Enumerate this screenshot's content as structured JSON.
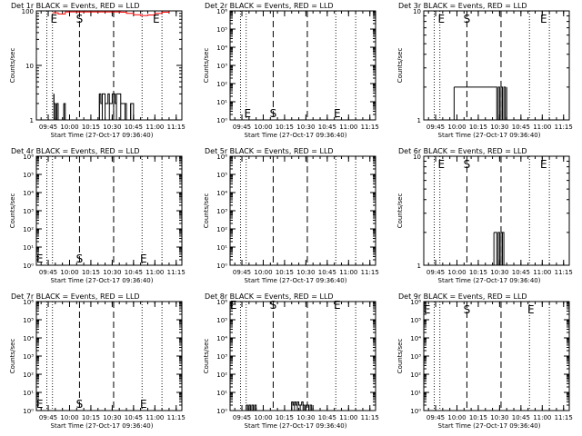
{
  "colors": {
    "events": "#000000",
    "lld": "#ff0000",
    "background": "#ffffff"
  },
  "marker_labels": {
    "e": "E",
    "s": "S"
  },
  "chart_data": [
    {
      "type": "line",
      "title": "Det 1r BLACK = Events, RED = LLD",
      "xlabel": "Start Time (27-Oct-17 09:36:40)",
      "ylabel": "Counts/sec",
      "scale": "log",
      "ylim": [
        1,
        100
      ],
      "yticks": [
        "1",
        "10",
        "100"
      ],
      "xticks": [
        "09:45",
        "10:00",
        "10:15",
        "10:30",
        "10:45",
        "11:00",
        "11:15"
      ],
      "grid": false,
      "markers": {
        "E1": "09:49",
        "S": "10:07",
        "E2": "11:01"
      },
      "series": [
        {
          "name": "Events",
          "color": "#000000",
          "x": [
            "09:49",
            "09:49",
            "09:50",
            "09:50",
            "09:51",
            "09:52",
            "09:56",
            "09:57",
            "10:21",
            "10:22",
            "10:23",
            "10:24",
            "10:25",
            "10:27",
            "10:28",
            "10:30",
            "10:31",
            "10:32",
            "10:33",
            "10:35",
            "10:36",
            "10:38",
            "10:39",
            "10:40",
            "10:43",
            "10:45"
          ],
          "y": [
            3,
            2,
            2,
            1,
            2,
            1,
            2,
            1,
            3,
            2,
            3,
            3,
            2,
            3,
            2,
            3,
            3,
            2,
            3,
            3,
            2,
            2,
            2,
            1,
            2,
            1
          ]
        },
        {
          "name": "LLD",
          "color": "#ff0000",
          "x": [
            "09:48",
            "09:52",
            "09:57",
            "10:36",
            "10:40",
            "10:45",
            "10:50",
            "10:55",
            "11:00",
            "11:05",
            "11:10"
          ],
          "y": [
            92,
            88,
            96,
            95,
            90,
            85,
            82,
            84,
            90,
            95,
            98
          ]
        }
      ]
    },
    {
      "type": "line",
      "title": "Det 2r BLACK = Events, RED = LLD",
      "xlabel": "Start Time (27-Oct-17 09:36:40)",
      "ylabel": "Counts/sec",
      "scale": "log",
      "ylim": [
        1,
        1000000
      ],
      "yticks": [
        "10⁰",
        "10¹",
        "10²",
        "10³",
        "10⁴",
        "10⁵",
        "10⁶"
      ],
      "xticks": [
        "09:45",
        "10:00",
        "10:15",
        "10:30",
        "10:45",
        "11:00",
        "11:15"
      ],
      "grid": false,
      "markers": {
        "E1": "09:49",
        "S": "10:07",
        "E2": "10:52"
      },
      "series": []
    },
    {
      "type": "line",
      "title": "Det 3r BLACK = Events, RED = LLD",
      "xlabel": "Start Time (27-Oct-17 09:36:40)",
      "ylabel": "Counts/sec",
      "scale": "log",
      "ylim": [
        1,
        10
      ],
      "yticks": [
        "1",
        "10"
      ],
      "xticks": [
        "09:45",
        "10:00",
        "10:15",
        "10:30",
        "10:45",
        "11:00",
        "11:15"
      ],
      "grid": false,
      "markers": {
        "E1": "09:49",
        "S": "10:07",
        "E2": "11:01"
      },
      "series": [
        {
          "name": "Events",
          "color": "#000000",
          "x": [
            "09:58",
            "10:27",
            "10:28",
            "10:29",
            "10:30",
            "10:31",
            "10:32",
            "10:33",
            "10:34",
            "10:35"
          ],
          "y": [
            2,
            2,
            1,
            2,
            1,
            2,
            1,
            2,
            1,
            2
          ]
        }
      ]
    },
    {
      "type": "line",
      "title": "Det 4r BLACK = Events, RED = LLD",
      "xlabel": "Start Time (27-Oct-17 09:36:40)",
      "ylabel": "Counts/sec",
      "scale": "log",
      "ylim": [
        1,
        1000000
      ],
      "yticks": [
        "10⁰",
        "10¹",
        "10²",
        "10³",
        "10⁴",
        "10⁵",
        "10⁶"
      ],
      "xticks": [
        "09:45",
        "10:00",
        "10:15",
        "10:30",
        "10:45",
        "11:00",
        "11:15"
      ],
      "grid": false,
      "markers": {
        "E1": "09:39",
        "S": "10:07",
        "E2": "10:52"
      },
      "series": []
    },
    {
      "type": "line",
      "title": "Det 5r BLACK = Events, RED = LLD",
      "xlabel": "Start Time (27-Oct-17 09:36:40)",
      "ylabel": "Counts/sec",
      "scale": "log",
      "ylim": [
        1,
        1000000
      ],
      "yticks": [
        "10⁰",
        "10¹",
        "10²",
        "10³",
        "10⁴",
        "10⁵",
        "10⁶"
      ],
      "xticks": [
        "09:45",
        "10:00",
        "10:15",
        "10:30",
        "10:45",
        "11:00",
        "11:15"
      ],
      "grid": false,
      "markers": {},
      "series": []
    },
    {
      "type": "line",
      "title": "Det 6r BLACK = Events, RED = LLD",
      "xlabel": "Start Time (27-Oct-17 09:36:40)",
      "ylabel": "Counts/sec",
      "scale": "log",
      "ylim": [
        1,
        10
      ],
      "yticks": [
        "1",
        "10"
      ],
      "xticks": [
        "09:45",
        "10:00",
        "10:15",
        "10:30",
        "10:45",
        "11:00",
        "11:15"
      ],
      "grid": false,
      "markers": {
        "E1": "09:49",
        "S": "10:07",
        "E2": "11:01"
      },
      "series": [
        {
          "name": "Events",
          "color": "#000000",
          "x": [
            "10:26",
            "10:27",
            "10:28",
            "10:29",
            "10:30",
            "10:31",
            "10:32",
            "10:33"
          ],
          "y": [
            2,
            2,
            1,
            2,
            1,
            2,
            2,
            1
          ]
        }
      ]
    },
    {
      "type": "line",
      "title": "Det 7r BLACK = Events, RED = LLD",
      "xlabel": "Start Time (27-Oct-17 09:36:40)",
      "ylabel": "Counts/sec",
      "scale": "log",
      "ylim": [
        1,
        1000000
      ],
      "yticks": [
        "10⁰",
        "10¹",
        "10²",
        "10³",
        "10⁴",
        "10⁵",
        "10⁶"
      ],
      "xticks": [
        "09:45",
        "10:00",
        "10:15",
        "10:30",
        "10:45",
        "11:00",
        "11:15"
      ],
      "grid": false,
      "markers": {
        "E1": "09:39",
        "S": "10:07",
        "E2": "10:52"
      },
      "series": []
    },
    {
      "type": "line",
      "title": "Det 8r BLACK = Events, RED = LLD",
      "xlabel": "Start Time (27-Oct-17 09:36:40)",
      "ylabel": "Counts/sec",
      "scale": "log",
      "ylim": [
        1,
        1000000
      ],
      "yticks": [
        "10⁰",
        "10¹",
        "10²",
        "10³",
        "10⁴",
        "10⁵",
        "10⁶"
      ],
      "xticks": [
        "09:45",
        "10:00",
        "10:15",
        "10:30",
        "10:45",
        "11:00",
        "11:15"
      ],
      "grid": false,
      "markers": {
        "E1": "09:39",
        "S": "10:07",
        "E2": "10:52"
      },
      "series": [
        {
          "name": "Events",
          "color": "#000000",
          "x": [
            "09:48",
            "09:49",
            "09:50",
            "09:51",
            "09:52",
            "09:53",
            "09:54",
            "09:55",
            "10:20",
            "10:21",
            "10:22",
            "10:23",
            "10:24",
            "10:25",
            "10:26",
            "10:27",
            "10:28",
            "10:29",
            "10:30",
            "10:31",
            "10:32",
            "10:33",
            "10:34",
            "10:35"
          ],
          "y": [
            2,
            1,
            2,
            1,
            2,
            1,
            2,
            1,
            3,
            2,
            3,
            2,
            3,
            2,
            2,
            3,
            2,
            1,
            2,
            2,
            1,
            2,
            1,
            2
          ]
        }
      ]
    },
    {
      "type": "line",
      "title": "Det 9r BLACK = Events, RED = LLD",
      "xlabel": "Start Time (27-Oct-17 09:36:40)",
      "ylabel": "Counts/sec",
      "scale": "log",
      "ylim": [
        1,
        1000000
      ],
      "yticks": [
        "10⁰",
        "10¹",
        "10²",
        "10³",
        "10⁴",
        "10⁵",
        "10⁶"
      ],
      "xticks": [
        "09:45",
        "10:00",
        "10:15",
        "10:30",
        "10:45",
        "11:00",
        "11:15"
      ],
      "grid": false,
      "markers": {
        "E1": "09:39",
        "S": "10:07",
        "E2": "10:52"
      },
      "series": []
    }
  ]
}
